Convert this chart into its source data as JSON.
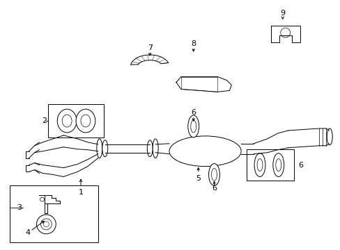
{
  "bg_color": "#ffffff",
  "line_color": "#000000",
  "fig_width": 4.89,
  "fig_height": 3.6,
  "dpi": 100,
  "lw": 0.7
}
